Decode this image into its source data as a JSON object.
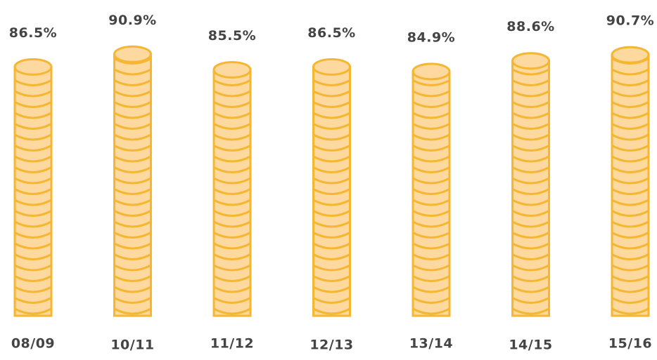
{
  "chart_data": {
    "type": "bar",
    "categories": [
      "08/09",
      "10/11",
      "11/12",
      "12/13",
      "13/14",
      "14/15",
      "15/16"
    ],
    "values": [
      86.5,
      90.9,
      85.5,
      86.5,
      84.9,
      88.6,
      90.7
    ],
    "value_labels": [
      "86.5%",
      "90.9%",
      "85.5%",
      "86.5%",
      "84.9%",
      "88.6%",
      "90.7%"
    ],
    "color": "#fdd9a0"
  }
}
